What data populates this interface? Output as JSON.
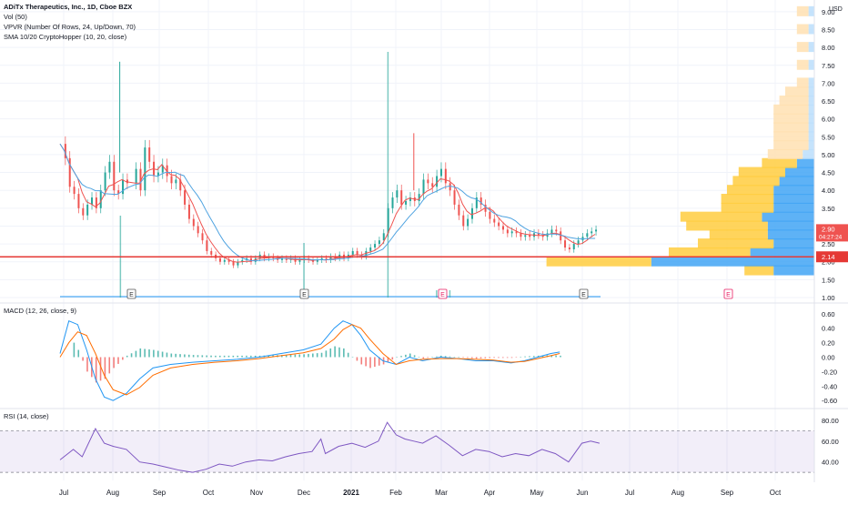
{
  "chart_data": [
    {
      "type": "candlestick",
      "pane": "price",
      "title": "ADiTx Therapeutics, Inc., 1D, Cboe BZX",
      "indicators": [
        "Vol (50)",
        "VPVR (Number Of Rows, 24, Up/Down, 70)",
        "SMA 10/20 CryptoHopper (10, 20, close)"
      ],
      "currency": "USD",
      "y_ticks": [
        "9.00",
        "8.50",
        "8.00",
        "7.50",
        "7.00",
        "6.50",
        "6.00",
        "5.50",
        "5.00",
        "4.50",
        "4.00",
        "3.50",
        "3.00",
        "2.50",
        "2.00",
        "1.50",
        "1.00"
      ],
      "ylim": [
        1.0,
        9.2
      ],
      "x_ticks": [
        "Jul",
        "Aug",
        "Sep",
        "Oct",
        "Nov",
        "Dec",
        "2021",
        "Feb",
        "Mar",
        "Apr",
        "May",
        "Jun",
        "Jul",
        "Aug",
        "Sep",
        "Oct"
      ],
      "last_price": "2.90",
      "countdown": "04:27:24",
      "horizontal_line": "2.14",
      "earnings_markers": [
        "E",
        "E",
        "E",
        "E",
        "E"
      ],
      "close_series": [
        [
          0,
          5.3
        ],
        [
          2,
          4.9
        ],
        [
          4,
          4.1
        ],
        [
          6,
          3.9
        ],
        [
          8,
          3.5
        ],
        [
          10,
          3.3
        ],
        [
          12,
          3.6
        ],
        [
          14,
          3.8
        ],
        [
          16,
          3.5
        ],
        [
          18,
          4.0
        ],
        [
          20,
          4.5
        ],
        [
          22,
          4.8
        ],
        [
          24,
          4.0
        ],
        [
          26,
          3.9
        ],
        [
          28,
          4.3
        ],
        [
          30,
          4.2
        ],
        [
          34,
          4.6
        ],
        [
          36,
          4.0
        ],
        [
          38,
          5.2
        ],
        [
          40,
          4.8
        ],
        [
          42,
          4.4
        ],
        [
          44,
          4.5
        ],
        [
          46,
          4.7
        ],
        [
          48,
          4.4
        ],
        [
          50,
          4.2
        ],
        [
          52,
          4.3
        ],
        [
          54,
          4.0
        ],
        [
          56,
          3.6
        ],
        [
          58,
          3.2
        ],
        [
          60,
          3.0
        ],
        [
          62,
          2.8
        ],
        [
          64,
          2.6
        ],
        [
          66,
          2.3
        ],
        [
          68,
          2.2
        ],
        [
          70,
          2.1
        ],
        [
          72,
          2.0
        ],
        [
          74,
          2.05
        ],
        [
          76,
          2.0
        ],
        [
          78,
          1.9
        ],
        [
          80,
          2.0
        ],
        [
          82,
          2.05
        ],
        [
          84,
          2.1
        ],
        [
          86,
          2.0
        ],
        [
          88,
          2.1
        ],
        [
          90,
          2.2
        ],
        [
          92,
          2.1
        ],
        [
          94,
          2.15
        ],
        [
          96,
          2.1
        ],
        [
          98,
          2.05
        ],
        [
          100,
          2.1
        ],
        [
          102,
          2.05
        ],
        [
          104,
          2.1
        ],
        [
          106,
          2.0
        ],
        [
          108,
          2.05
        ],
        [
          110,
          2.1
        ],
        [
          112,
          2.05
        ],
        [
          114,
          2.0
        ],
        [
          116,
          2.05
        ],
        [
          118,
          2.1
        ],
        [
          120,
          2.05
        ],
        [
          122,
          2.15
        ],
        [
          124,
          2.1
        ],
        [
          126,
          2.2
        ],
        [
          128,
          2.1
        ],
        [
          130,
          2.2
        ],
        [
          132,
          2.3
        ],
        [
          134,
          2.2
        ],
        [
          136,
          2.15
        ],
        [
          138,
          2.3
        ],
        [
          140,
          2.4
        ],
        [
          142,
          2.5
        ],
        [
          144,
          2.6
        ],
        [
          146,
          2.8
        ],
        [
          148,
          3.5
        ],
        [
          150,
          3.8
        ],
        [
          152,
          4.0
        ],
        [
          154,
          3.6
        ],
        [
          156,
          3.7
        ],
        [
          158,
          3.8
        ],
        [
          160,
          3.7
        ],
        [
          162,
          3.9
        ],
        [
          164,
          4.3
        ],
        [
          166,
          4.2
        ],
        [
          168,
          4.1
        ],
        [
          170,
          4.4
        ],
        [
          172,
          4.6
        ],
        [
          174,
          4.2
        ],
        [
          176,
          4.0
        ],
        [
          178,
          3.6
        ],
        [
          180,
          3.3
        ],
        [
          182,
          3.0
        ],
        [
          184,
          3.2
        ],
        [
          186,
          3.5
        ],
        [
          188,
          3.8
        ],
        [
          190,
          3.6
        ],
        [
          192,
          3.4
        ],
        [
          194,
          3.2
        ],
        [
          196,
          3.1
        ],
        [
          198,
          3.0
        ],
        [
          200,
          2.9
        ],
        [
          202,
          2.8
        ],
        [
          204,
          2.85
        ],
        [
          206,
          2.8
        ],
        [
          208,
          2.7
        ],
        [
          210,
          2.75
        ],
        [
          212,
          2.7
        ],
        [
          214,
          2.8
        ],
        [
          216,
          2.75
        ],
        [
          218,
          2.7
        ],
        [
          220,
          2.8
        ],
        [
          222,
          2.9
        ],
        [
          224,
          2.85
        ],
        [
          226,
          2.6
        ],
        [
          228,
          2.4
        ],
        [
          230,
          2.35
        ],
        [
          232,
          2.5
        ],
        [
          234,
          2.6
        ],
        [
          236,
          2.7
        ],
        [
          238,
          2.8
        ],
        [
          240,
          2.85
        ],
        [
          242,
          2.9
        ]
      ],
      "vpvr_rows": [
        {
          "price": 1.75,
          "up": 0.05,
          "down": 0.07
        },
        {
          "price": 2.0,
          "up": 0.18,
          "down": 0.28
        },
        {
          "price": 2.25,
          "up": 0.14,
          "down": 0.11
        },
        {
          "price": 2.5,
          "up": 0.13,
          "down": 0.07
        },
        {
          "price": 2.75,
          "up": 0.1,
          "down": 0.08
        },
        {
          "price": 3.0,
          "up": 0.14,
          "down": 0.08
        },
        {
          "price": 3.25,
          "up": 0.14,
          "down": 0.09
        },
        {
          "price": 3.5,
          "up": 0.09,
          "down": 0.07
        },
        {
          "price": 3.75,
          "up": 0.09,
          "down": 0.07
        },
        {
          "price": 4.0,
          "up": 0.08,
          "down": 0.07
        },
        {
          "price": 4.25,
          "up": 0.08,
          "down": 0.06
        },
        {
          "price": 4.5,
          "up": 0.08,
          "down": 0.05
        },
        {
          "price": 4.75,
          "up": 0.06,
          "down": 0.03
        },
        {
          "price": 5.0,
          "up": 0.06,
          "down": 0.02
        },
        {
          "price": 5.25,
          "up": 0.06,
          "down": 0.01
        },
        {
          "price": 5.5,
          "up": 0.06,
          "down": 0.01
        },
        {
          "price": 5.75,
          "up": 0.06,
          "down": 0.01
        },
        {
          "price": 6.0,
          "up": 0.06,
          "down": 0.01
        },
        {
          "price": 6.25,
          "up": 0.06,
          "down": 0.01
        },
        {
          "price": 6.5,
          "up": 0.05,
          "down": 0.01
        },
        {
          "price": 6.75,
          "up": 0.04,
          "down": 0.01
        },
        {
          "price": 7.0,
          "up": 0.02,
          "down": 0.01
        },
        {
          "price": 7.5,
          "up": 0.02,
          "down": 0.01
        },
        {
          "price": 8.0,
          "up": 0.02,
          "down": 0.01
        },
        {
          "price": 8.5,
          "up": 0.02,
          "down": 0.01
        },
        {
          "price": 9.0,
          "up": 0.02,
          "down": 0.01
        }
      ]
    },
    {
      "type": "line",
      "pane": "macd",
      "title": "MACD (12, 26, close, 9)",
      "y_ticks": [
        "0.60",
        "0.40",
        "0.20",
        "0.00",
        "-0.20",
        "-0.40",
        "-0.60"
      ],
      "ylim": [
        -0.66,
        0.66
      ],
      "macd": [
        [
          0,
          0.05
        ],
        [
          4,
          0.5
        ],
        [
          8,
          0.45
        ],
        [
          12,
          0.1
        ],
        [
          16,
          -0.3
        ],
        [
          20,
          -0.55
        ],
        [
          24,
          -0.6
        ],
        [
          30,
          -0.5
        ],
        [
          36,
          -0.3
        ],
        [
          42,
          -0.15
        ],
        [
          50,
          -0.1
        ],
        [
          60,
          -0.07
        ],
        [
          70,
          -0.05
        ],
        [
          80,
          -0.03
        ],
        [
          90,
          0.0
        ],
        [
          100,
          0.05
        ],
        [
          110,
          0.1
        ],
        [
          118,
          0.18
        ],
        [
          124,
          0.4
        ],
        [
          128,
          0.5
        ],
        [
          132,
          0.45
        ],
        [
          136,
          0.3
        ],
        [
          140,
          0.1
        ],
        [
          146,
          -0.05
        ],
        [
          152,
          -0.1
        ],
        [
          158,
          0.0
        ],
        [
          164,
          -0.05
        ],
        [
          172,
          0.0
        ],
        [
          180,
          -0.02
        ],
        [
          188,
          -0.05
        ],
        [
          196,
          -0.05
        ],
        [
          204,
          -0.08
        ],
        [
          210,
          -0.05
        ],
        [
          216,
          0.0
        ],
        [
          222,
          0.05
        ],
        [
          226,
          0.07
        ]
      ],
      "signal": [
        [
          0,
          0.0
        ],
        [
          4,
          0.2
        ],
        [
          8,
          0.35
        ],
        [
          12,
          0.3
        ],
        [
          16,
          0.05
        ],
        [
          20,
          -0.25
        ],
        [
          24,
          -0.45
        ],
        [
          30,
          -0.52
        ],
        [
          36,
          -0.42
        ],
        [
          42,
          -0.25
        ],
        [
          50,
          -0.15
        ],
        [
          60,
          -0.1
        ],
        [
          70,
          -0.07
        ],
        [
          80,
          -0.05
        ],
        [
          90,
          -0.02
        ],
        [
          100,
          0.02
        ],
        [
          110,
          0.06
        ],
        [
          118,
          0.12
        ],
        [
          124,
          0.25
        ],
        [
          128,
          0.38
        ],
        [
          132,
          0.45
        ],
        [
          136,
          0.4
        ],
        [
          140,
          0.25
        ],
        [
          146,
          0.05
        ],
        [
          152,
          -0.1
        ],
        [
          158,
          -0.05
        ],
        [
          164,
          -0.03
        ],
        [
          172,
          -0.02
        ],
        [
          180,
          -0.02
        ],
        [
          188,
          -0.03
        ],
        [
          196,
          -0.04
        ],
        [
          204,
          -0.07
        ],
        [
          210,
          -0.06
        ],
        [
          216,
          -0.02
        ],
        [
          222,
          0.02
        ],
        [
          226,
          0.05
        ]
      ]
    },
    {
      "type": "line",
      "pane": "rsi",
      "title": "RSI (14, close)",
      "y_ticks": [
        "80.00",
        "60.00",
        "40.00"
      ],
      "ylim": [
        24,
        86
      ],
      "band": [
        30,
        70
      ],
      "rsi": [
        [
          0,
          42
        ],
        [
          6,
          52
        ],
        [
          10,
          45
        ],
        [
          16,
          72
        ],
        [
          20,
          58
        ],
        [
          24,
          55
        ],
        [
          30,
          52
        ],
        [
          36,
          40
        ],
        [
          42,
          38
        ],
        [
          48,
          35
        ],
        [
          54,
          32
        ],
        [
          60,
          30
        ],
        [
          66,
          33
        ],
        [
          72,
          38
        ],
        [
          78,
          36
        ],
        [
          84,
          40
        ],
        [
          90,
          42
        ],
        [
          96,
          41
        ],
        [
          102,
          45
        ],
        [
          108,
          48
        ],
        [
          114,
          50
        ],
        [
          118,
          62
        ],
        [
          120,
          48
        ],
        [
          126,
          55
        ],
        [
          132,
          58
        ],
        [
          138,
          54
        ],
        [
          144,
          60
        ],
        [
          148,
          78
        ],
        [
          152,
          66
        ],
        [
          156,
          62
        ],
        [
          160,
          60
        ],
        [
          164,
          58
        ],
        [
          170,
          65
        ],
        [
          176,
          56
        ],
        [
          182,
          46
        ],
        [
          188,
          52
        ],
        [
          194,
          50
        ],
        [
          200,
          45
        ],
        [
          206,
          48
        ],
        [
          212,
          46
        ],
        [
          218,
          52
        ],
        [
          224,
          48
        ],
        [
          230,
          40
        ],
        [
          236,
          58
        ],
        [
          240,
          60
        ],
        [
          244,
          58
        ]
      ]
    }
  ]
}
